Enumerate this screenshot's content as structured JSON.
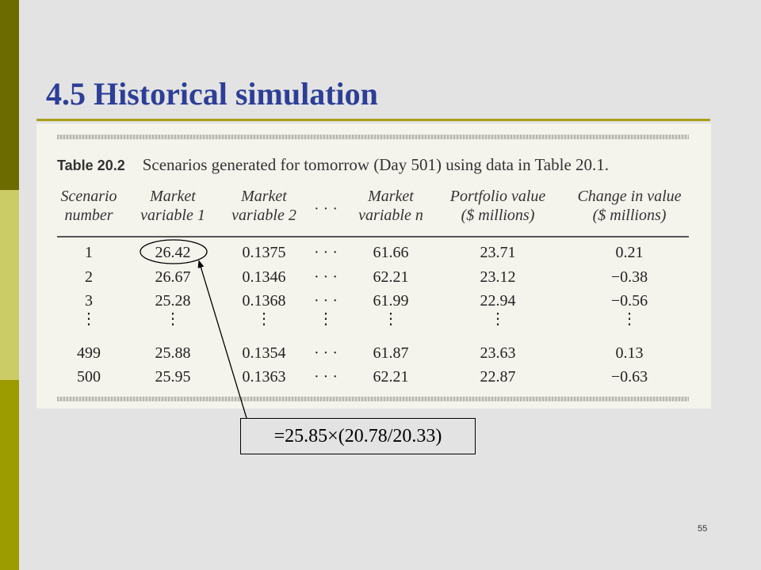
{
  "slide": {
    "title": "4.5 Historical simulation",
    "page_number": "55",
    "colors": {
      "title": "#2d3e97",
      "sidebar_dark": "#6b6b00",
      "sidebar_light": "#cccc66",
      "sidebar_mid": "#9c9c00",
      "rule": "#a8a01a",
      "background": "#e3e3e3"
    }
  },
  "table": {
    "number": "Table 20.2",
    "caption": "Scenarios generated for tomorrow (Day 501) using data in Table 20.1.",
    "headers": [
      [
        "Scenario",
        "number"
      ],
      [
        "Market",
        "variable 1"
      ],
      [
        "Market",
        "variable 2"
      ],
      [
        "· · ·"
      ],
      [
        "Market",
        "variable n"
      ],
      [
        "Portfolio value",
        "($ millions)"
      ],
      [
        "Change in value",
        "($ millions)"
      ]
    ],
    "rows": [
      [
        "1",
        "26.42",
        "0.1375",
        "· · ·",
        "61.66",
        "23.71",
        "0.21"
      ],
      [
        "2",
        "26.67",
        "0.1346",
        "· · ·",
        "62.21",
        "23.12",
        "−0.38"
      ],
      [
        "3",
        "25.28",
        "0.1368",
        "· · ·",
        "61.99",
        "22.94",
        "−0.56"
      ],
      [
        "⋮",
        "⋮",
        "⋮",
        "⋮",
        "⋮",
        "⋮",
        "⋮"
      ],
      [
        "499",
        "25.88",
        "0.1354",
        "· · ·",
        "61.87",
        "23.63",
        "0.13"
      ],
      [
        "500",
        "25.95",
        "0.1363",
        "· · ·",
        "62.21",
        "22.87",
        "−0.63"
      ]
    ]
  },
  "annotation": {
    "formula": "=25.85×(20.78/20.33)"
  }
}
